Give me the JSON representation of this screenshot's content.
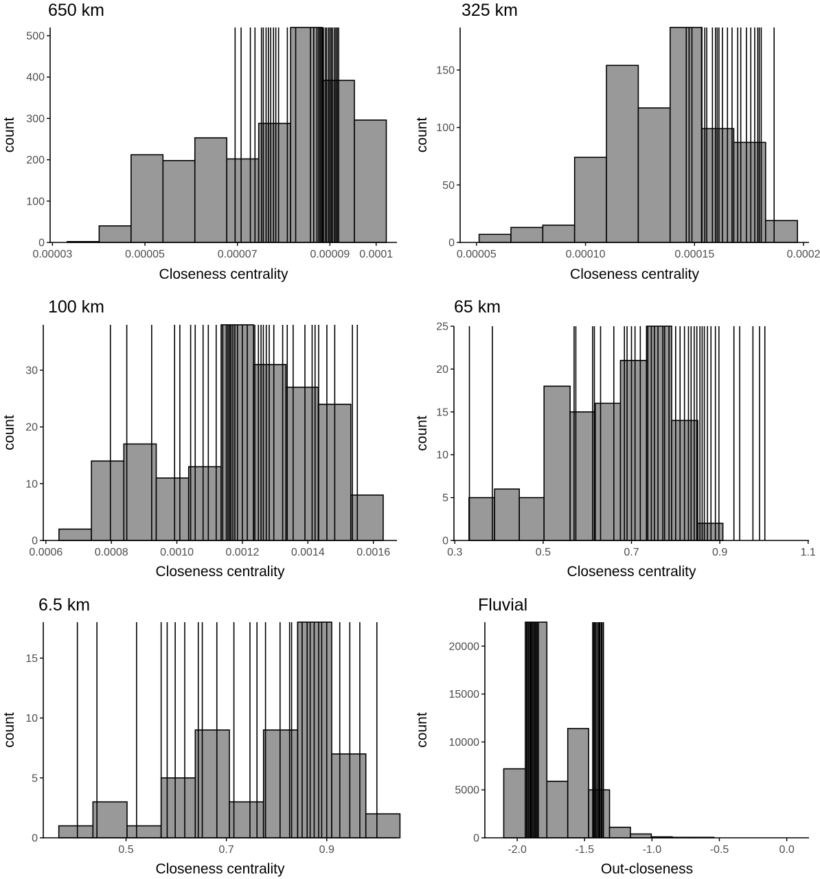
{
  "chart_data": [
    {
      "type": "bar",
      "title": "650 km",
      "xlabel": "Closeness centrality",
      "ylabel": "count",
      "xlim": [
        2.95e-05,
        0.0001045
      ],
      "ylim": [
        0,
        520
      ],
      "x_ticks": [
        3e-05,
        5e-05,
        7e-05,
        9e-05,
        0.0001
      ],
      "x_tick_labels": [
        "0.00003",
        "0.00005",
        "0.00007",
        "0.00009",
        "0.0001"
      ],
      "y_ticks": [
        0,
        100,
        200,
        300,
        400,
        500
      ],
      "y_tick_labels": [
        "0",
        "100",
        "200",
        "300",
        "400",
        "500"
      ],
      "bins": [
        [
          3.32e-05,
          4.01e-05,
          2
        ],
        [
          4.01e-05,
          4.7e-05,
          40
        ],
        [
          4.7e-05,
          5.39e-05,
          212
        ],
        [
          5.39e-05,
          6.08e-05,
          198
        ],
        [
          6.08e-05,
          6.77e-05,
          253
        ],
        [
          6.77e-05,
          7.46e-05,
          202
        ],
        [
          7.46e-05,
          8.15e-05,
          288
        ],
        [
          8.15e-05,
          8.84e-05,
          520
        ],
        [
          8.84e-05,
          9.53e-05,
          392
        ],
        [
          9.53e-05,
          0.0001022,
          296
        ]
      ],
      "vlines": [
        6.95e-05,
        7.08e-05,
        7.28e-05,
        7.38e-05,
        7.52e-05,
        7.56e-05,
        7.62e-05,
        7.67e-05,
        7.72e-05,
        7.78e-05,
        7.83e-05,
        7.89e-05,
        8.08e-05,
        8.26e-05,
        8.58e-05,
        8.65e-05,
        8.72e-05,
        8.76e-05,
        8.79e-05,
        8.82e-05,
        8.86e-05,
        8.9e-05,
        8.93e-05,
        8.97e-05,
        9e-05,
        9.03e-05,
        9.06e-05,
        9.1e-05,
        9.13e-05,
        9.16e-05,
        9.19e-05
      ]
    },
    {
      "type": "bar",
      "title": "325 km",
      "xlabel": "Closeness centrality",
      "ylabel": "count",
      "xlim": [
        4.25e-05,
        0.0002025
      ],
      "ylim": [
        0,
        187
      ],
      "x_ticks": [
        5e-05,
        0.0001,
        0.00015,
        0.0002
      ],
      "x_tick_labels": [
        "0.00005",
        "0.00010",
        "0.00015",
        "0.0002"
      ],
      "y_ticks": [
        0,
        50,
        100,
        150
      ],
      "y_tick_labels": [
        "0",
        "50",
        "100",
        "150"
      ],
      "bins": [
        [
          5.12e-05,
          6.58e-05,
          7
        ],
        [
          6.58e-05,
          8.04e-05,
          13
        ],
        [
          8.04e-05,
          9.5e-05,
          15
        ],
        [
          9.5e-05,
          0.0001096,
          74
        ],
        [
          0.0001096,
          0.0001242,
          154
        ],
        [
          0.0001242,
          0.0001388,
          117
        ],
        [
          0.0001388,
          0.0001534,
          187
        ],
        [
          0.0001534,
          0.000168,
          99
        ],
        [
          0.000168,
          0.0001826,
          87
        ],
        [
          0.0001826,
          0.0001972,
          19
        ]
      ],
      "vlines": [
        0.0001462,
        0.0001475,
        0.0001488,
        0.0001532,
        0.0001547,
        0.0001556,
        0.0001582,
        0.0001596,
        0.0001604,
        0.0001612,
        0.0001628,
        0.0001651,
        0.0001672,
        0.0001698,
        0.0001712,
        0.0001738,
        0.0001758,
        0.0001776,
        0.000179,
        0.0001797,
        0.0001806,
        0.0001865
      ]
    },
    {
      "type": "bar",
      "title": "100 km",
      "xlabel": "Closeness centrality",
      "ylabel": "count",
      "xlim": [
        0.000592,
        0.001672
      ],
      "ylim": [
        0,
        38
      ],
      "x_ticks": [
        0.0006,
        0.0008,
        0.001,
        0.0012,
        0.0014,
        0.0016
      ],
      "x_tick_labels": [
        "0.0006",
        "0.0008",
        "0.0010",
        "0.0012",
        "0.0014",
        "0.0016"
      ],
      "y_ticks": [
        0,
        10,
        20,
        30
      ],
      "y_tick_labels": [
        "0",
        "10",
        "20",
        "30"
      ],
      "bins": [
        [
          0.00064,
          0.000739,
          2
        ],
        [
          0.000739,
          0.000838,
          14
        ],
        [
          0.000838,
          0.000937,
          17
        ],
        [
          0.000937,
          0.001036,
          11
        ],
        [
          0.001036,
          0.001135,
          13
        ],
        [
          0.001135,
          0.001234,
          38
        ],
        [
          0.001234,
          0.001333,
          31
        ],
        [
          0.001333,
          0.001432,
          27
        ],
        [
          0.001432,
          0.001531,
          24
        ],
        [
          0.001531,
          0.00163,
          8
        ]
      ],
      "vlines": [
        0.000797,
        0.000847,
        0.000923,
        0.000993,
        0.001009,
        0.001042,
        0.001056,
        0.00108,
        0.001096,
        0.00112,
        0.00114,
        0.001151,
        0.001156,
        0.001161,
        0.001165,
        0.001171,
        0.001177,
        0.001185,
        0.0012,
        0.001215,
        0.001238,
        0.001249,
        0.001257,
        0.001264,
        0.001273,
        0.001282,
        0.001296,
        0.001323,
        0.001337,
        0.001355,
        0.001391,
        0.001413,
        0.001422,
        0.001433,
        0.001458,
        0.001482,
        0.001536,
        0.001551
      ]
    },
    {
      "type": "bar",
      "title": "65 km",
      "xlabel": "Closeness centrality",
      "ylabel": "count",
      "xlim": [
        0.298,
        1.102
      ],
      "ylim": [
        0,
        25
      ],
      "x_ticks": [
        0.3,
        0.5,
        0.7,
        0.9,
        1.1
      ],
      "x_tick_labels": [
        "0.3",
        "0.5",
        "0.7",
        "0.9",
        "1.1"
      ],
      "y_ticks": [
        0,
        5,
        10,
        15,
        20,
        25
      ],
      "y_tick_labels": [
        "0",
        "5",
        "10",
        "15",
        "20",
        "25"
      ],
      "bins": [
        [
          0.332,
          0.39,
          5
        ],
        [
          0.39,
          0.446,
          6
        ],
        [
          0.446,
          0.502,
          5
        ],
        [
          0.502,
          0.561,
          18
        ],
        [
          0.561,
          0.618,
          15
        ],
        [
          0.618,
          0.675,
          16
        ],
        [
          0.675,
          0.734,
          21
        ],
        [
          0.734,
          0.791,
          25
        ],
        [
          0.791,
          0.85,
          14
        ],
        [
          0.85,
          0.907,
          2
        ]
      ],
      "vlines": [
        0.333,
        0.385,
        0.57,
        0.574,
        0.612,
        0.616,
        0.63,
        0.66,
        0.684,
        0.69,
        0.7,
        0.708,
        0.72,
        0.737,
        0.745,
        0.752,
        0.76,
        0.771,
        0.775,
        0.785,
        0.8,
        0.81,
        0.82,
        0.829,
        0.835,
        0.842,
        0.848,
        0.855,
        0.86,
        0.865,
        0.872,
        0.88,
        0.89,
        0.898,
        0.932,
        0.945,
        0.975,
        0.99,
        1.002
      ]
    },
    {
      "type": "bar",
      "title": "6.5 km",
      "xlabel": "Closeness centrality",
      "ylabel": "count",
      "xlim": [
        0.335,
        1.04
      ],
      "ylim": [
        0,
        18
      ],
      "x_ticks": [
        0.5,
        0.7,
        0.9
      ],
      "x_tick_labels": [
        "0.5",
        "0.7",
        "0.9"
      ],
      "y_ticks": [
        0,
        5,
        10,
        15
      ],
      "y_tick_labels": [
        "0",
        "5",
        "10",
        "15"
      ],
      "bins": [
        [
          0.366,
          0.434,
          1
        ],
        [
          0.434,
          0.502,
          3
        ],
        [
          0.502,
          0.57,
          1
        ],
        [
          0.57,
          0.638,
          5
        ],
        [
          0.638,
          0.706,
          9
        ],
        [
          0.706,
          0.774,
          3
        ],
        [
          0.774,
          0.842,
          9
        ],
        [
          0.842,
          0.91,
          18
        ],
        [
          0.91,
          0.978,
          7
        ],
        [
          0.978,
          1.046,
          2
        ]
      ],
      "vlines": [
        0.403,
        0.442,
        0.521,
        0.57,
        0.582,
        0.598,
        0.617,
        0.644,
        0.652,
        0.681,
        0.715,
        0.747,
        0.761,
        0.778,
        0.807,
        0.826,
        0.83,
        0.842,
        0.851,
        0.861,
        0.867,
        0.875,
        0.884,
        0.89,
        0.9,
        0.926,
        0.946,
        0.966,
        1.0
      ]
    },
    {
      "type": "bar",
      "title": "Fluvial",
      "xlabel": "Out-closeness",
      "ylabel": "count",
      "xlim": [
        -2.24,
        0.165
      ],
      "ylim": [
        0,
        22500
      ],
      "x_ticks": [
        -2.0,
        -1.5,
        -1.0,
        -0.5,
        0.0
      ],
      "x_tick_labels": [
        "-2.0",
        "-1.5",
        "-1.0",
        "-0.5",
        "0.0"
      ],
      "y_ticks": [
        0,
        5000,
        10000,
        15000,
        20000
      ],
      "y_tick_labels": [
        "0",
        "5000",
        "10000",
        "15000",
        "20000"
      ],
      "bins": [
        [
          -2.1,
          -1.94,
          7200
        ],
        [
          -1.94,
          -1.78,
          22500
        ],
        [
          -1.78,
          -1.625,
          5900
        ],
        [
          -1.625,
          -1.47,
          11400
        ],
        [
          -1.47,
          -1.315,
          5000
        ],
        [
          -1.315,
          -1.16,
          1100
        ],
        [
          -1.16,
          -1.005,
          400
        ],
        [
          -1.005,
          -0.85,
          100
        ],
        [
          -0.85,
          -0.695,
          50
        ],
        [
          -0.695,
          -0.54,
          50
        ]
      ],
      "vlines": [
        -1.93,
        -1.925,
        -1.915,
        -1.905,
        -1.898,
        -1.889,
        -1.88,
        -1.87,
        -1.861,
        -1.852,
        -1.843,
        -1.44,
        -1.432,
        -1.424,
        -1.415,
        -1.405,
        -1.395,
        -1.388,
        -1.378,
        -1.37,
        -1.36
      ]
    }
  ]
}
